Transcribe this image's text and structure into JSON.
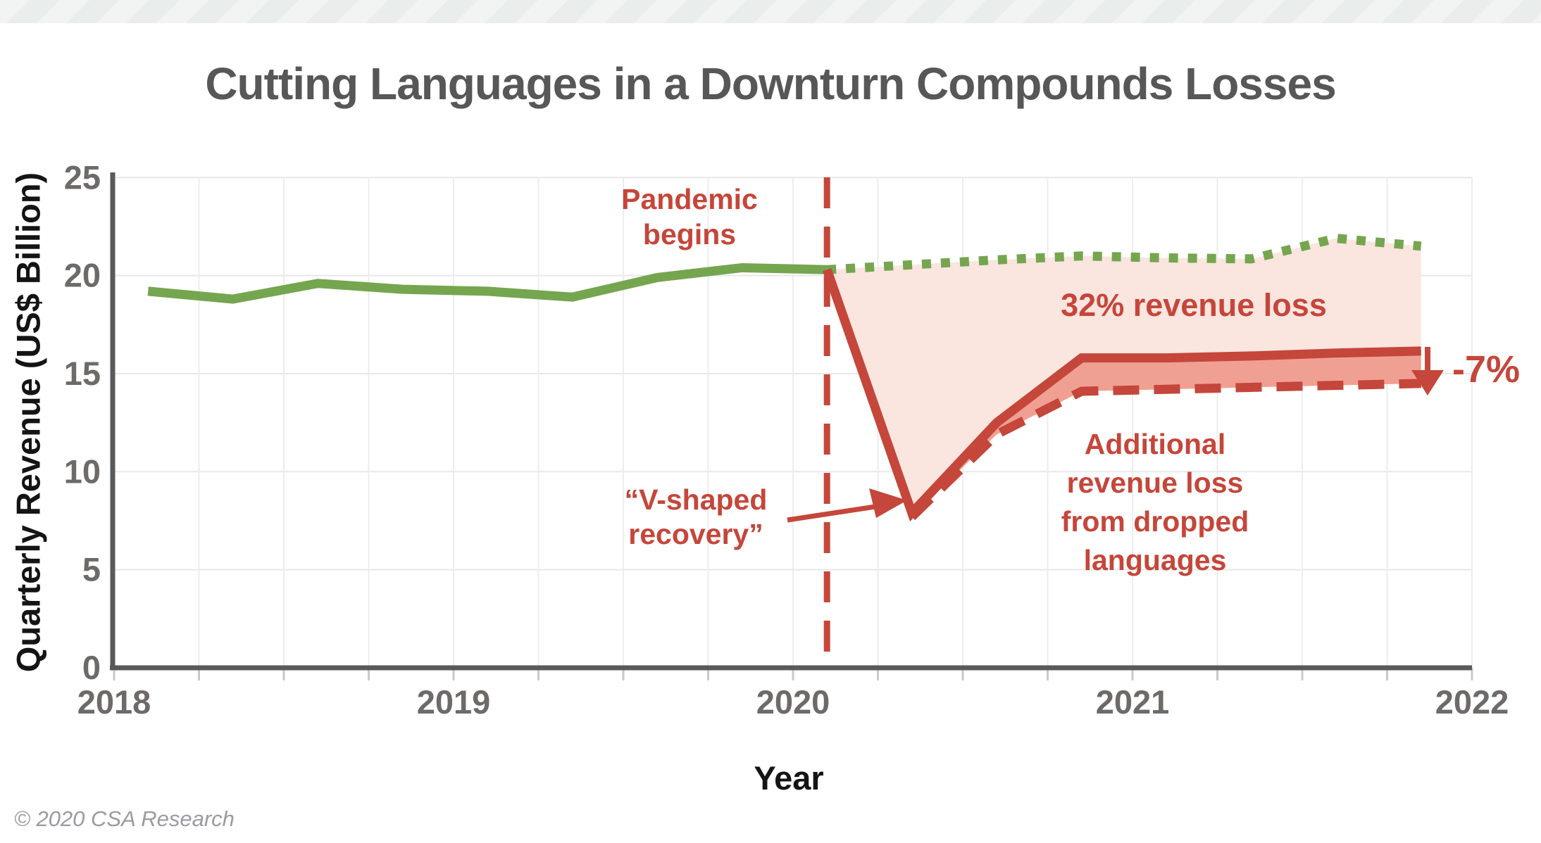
{
  "header": {
    "title": "Cutting Languages in a Downturn Compounds Losses"
  },
  "footer": {
    "copyright": "© 2020 CSA Research"
  },
  "colors": {
    "red": "#c5463a",
    "green": "#75a64f",
    "pink_fill": "#fae5df",
    "salmon_fill": "#f0a092",
    "gridline": "#e8e8e8",
    "minor_gridline": "#ededec",
    "tick_stub": "#c9c9c9",
    "spine": "#58595b",
    "tick_text": "#6d6a68",
    "title_text": "#575757"
  },
  "chart_data": {
    "type": "line",
    "title": "Cutting Languages in a Downturn Compounds Losses",
    "xlabel": "Year",
    "ylabel": "Quarterly Revenue (US$ Billion)",
    "ylim": [
      0,
      25
    ],
    "yticks": [
      0,
      5,
      10,
      15,
      20,
      25
    ],
    "xticks": [
      2018,
      2019,
      2020,
      2021,
      2022
    ],
    "grid": "on",
    "legend": "none",
    "x": [
      2018.1,
      2018.35,
      2018.6,
      2018.85,
      2019.1,
      2019.35,
      2019.6,
      2019.85,
      2020.1,
      2020.35,
      2020.6,
      2020.85,
      2021.1,
      2021.35,
      2021.6,
      2021.85
    ],
    "series": [
      {
        "name": "actual-revenue-pre-pandemic",
        "style": "solid",
        "color": "#75a64f",
        "values": [
          19.2,
          18.8,
          19.6,
          19.3,
          19.2,
          18.9,
          19.9,
          20.4,
          20.3,
          null,
          null,
          null,
          null,
          null,
          null,
          null
        ]
      },
      {
        "name": "projected-revenue-no-pandemic",
        "style": "dotted",
        "color": "#75a64f",
        "values": [
          null,
          null,
          null,
          null,
          null,
          null,
          null,
          null,
          20.3,
          20.55,
          20.8,
          21.0,
          20.9,
          20.85,
          21.9,
          21.5
        ]
      },
      {
        "name": "v-shaped-recovery-keeping-languages",
        "style": "solid",
        "color": "#c5463a",
        "values": [
          null,
          null,
          null,
          null,
          null,
          null,
          null,
          null,
          20.3,
          7.9,
          12.5,
          15.8,
          15.8,
          15.9,
          16.05,
          16.15
        ]
      },
      {
        "name": "recovery-with-dropped-languages",
        "style": "dashed",
        "color": "#c5463a",
        "values": [
          null,
          null,
          null,
          null,
          null,
          null,
          null,
          null,
          null,
          7.7,
          11.9,
          14.1,
          14.2,
          14.3,
          14.4,
          14.5
        ]
      }
    ],
    "fills": [
      {
        "name": "pandemic-revenue-loss-area",
        "upper": 1,
        "lower": 2,
        "color": "#fae5df"
      },
      {
        "name": "dropped-language-extra-loss-area",
        "upper": 2,
        "lower": 3,
        "color": "#f0a092"
      }
    ],
    "annotations": {
      "pandemic": {
        "line1": "Pandemic",
        "line2": "begins",
        "x": 2020.1
      },
      "loss32": {
        "text": "32% revenue loss"
      },
      "vshape": {
        "line1": "“V-shaped",
        "line2": "recovery”"
      },
      "additional": {
        "line1": "Additional",
        "line2": "revenue loss",
        "line3": "from dropped",
        "line4": "languages"
      },
      "minus7": {
        "text": "-7%"
      }
    }
  }
}
